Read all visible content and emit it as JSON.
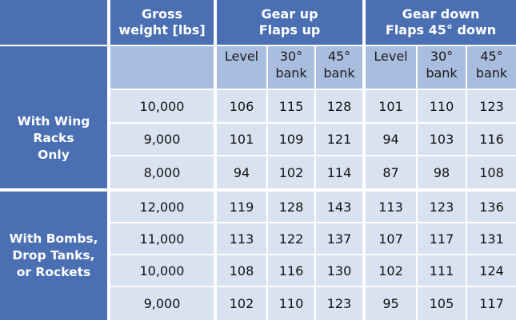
{
  "header": {
    "gross_weight": "Gross\nweight [lbs]",
    "group_gear_up": "Gear up\nFlaps up",
    "group_gear_down": "Gear down\nFlaps 45° down"
  },
  "subheader": [
    "Level",
    "30°\nbank",
    "45°\nbank",
    "Level",
    "30°\nbank",
    "45°\nbank"
  ],
  "sections": [
    {
      "label": "With Wing\nRacks\nOnly",
      "rows": [
        {
          "weight": "10,000",
          "values": [
            "106",
            "115",
            "128",
            "101",
            "110",
            "123"
          ]
        },
        {
          "weight": "9,000",
          "values": [
            "101",
            "109",
            "121",
            "94",
            "103",
            "116"
          ]
        },
        {
          "weight": "8,000",
          "values": [
            "94",
            "102",
            "114",
            "87",
            "98",
            "108"
          ]
        }
      ]
    },
    {
      "label": "With Bombs,\nDrop Tanks,\nor Rockets",
      "rows": [
        {
          "weight": "12,000",
          "values": [
            "119",
            "128",
            "143",
            "113",
            "123",
            "136"
          ]
        },
        {
          "weight": "11,000",
          "values": [
            "113",
            "122",
            "137",
            "107",
            "117",
            "131"
          ]
        },
        {
          "weight": "10,000",
          "values": [
            "108",
            "116",
            "130",
            "102",
            "111",
            "124"
          ]
        },
        {
          "weight": "9,000",
          "values": [
            "102",
            "110",
            "123",
            "95",
            "105",
            "117"
          ]
        }
      ]
    }
  ]
}
